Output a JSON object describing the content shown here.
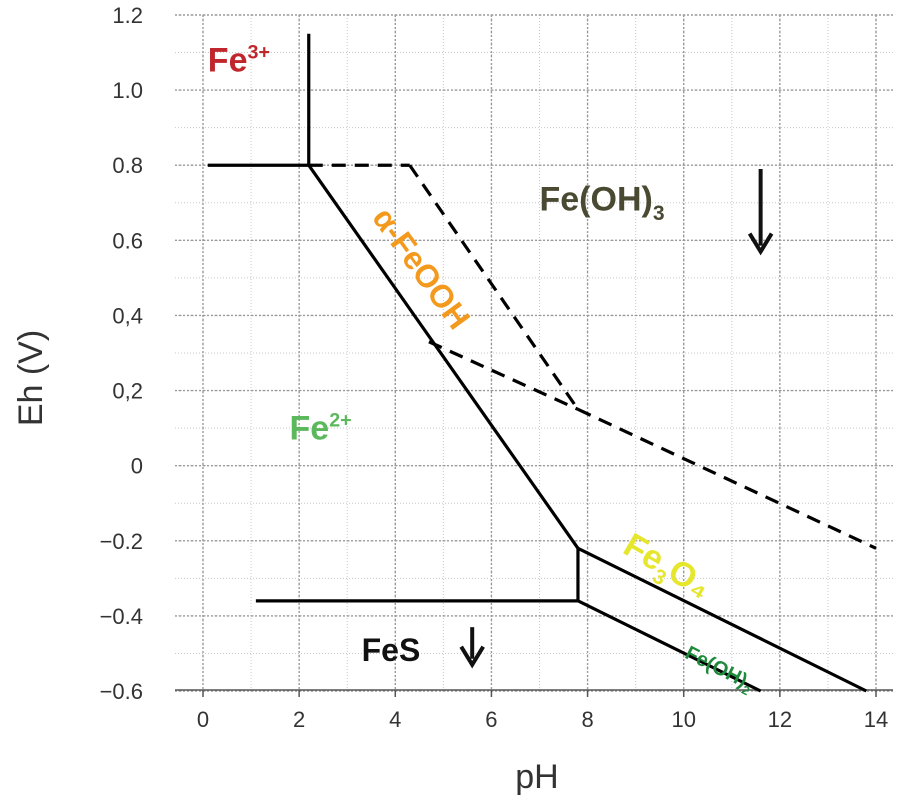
{
  "chart_data": {
    "type": "line",
    "xlabel": "pH",
    "ylabel": "Eh (V)",
    "xlim": [
      0,
      14
    ],
    "ylim": [
      -0.6,
      1.2
    ],
    "x_ticks": [
      0,
      2,
      4,
      6,
      8,
      10,
      12,
      14
    ],
    "x_tick_labels": [
      "0",
      "2",
      "4",
      "6",
      "8",
      "10",
      "12",
      "14"
    ],
    "y_ticks": [
      -0.6,
      -0.4,
      -0.2,
      0,
      0.2,
      0.4,
      0.6,
      0.8,
      1.0,
      1.2
    ],
    "y_tick_labels": [
      "−0.6",
      "−0.4",
      "−0.2",
      "0",
      "0,2",
      "0,4",
      "0.6",
      "0.8",
      "1.0",
      "1.2"
    ],
    "grid": true,
    "x_minor_grid_step": 1,
    "y_minor_grid_step": 0.1,
    "series": [
      {
        "style": "solid",
        "segments": [
          [
            [
              2.2,
              1.15
            ],
            [
              2.2,
              0.8
            ]
          ],
          [
            [
              0.1,
              0.8
            ],
            [
              2.2,
              0.8
            ]
          ],
          [
            [
              2.2,
              0.8
            ],
            [
              7.8,
              -0.22
            ]
          ],
          [
            [
              7.8,
              -0.22
            ],
            [
              13.8,
              -0.6
            ]
          ],
          [
            [
              7.8,
              -0.22
            ],
            [
              7.8,
              -0.36
            ]
          ],
          [
            [
              1.1,
              -0.36
            ],
            [
              7.8,
              -0.36
            ]
          ],
          [
            [
              7.8,
              -0.36
            ],
            [
              11.6,
              -0.6
            ]
          ]
        ]
      },
      {
        "style": "dashed",
        "segments": [
          [
            [
              2.2,
              0.8
            ],
            [
              4.3,
              0.8
            ]
          ],
          [
            [
              4.3,
              0.8
            ],
            [
              7.8,
              0.15
            ]
          ],
          [
            [
              4.7,
              0.33
            ],
            [
              7.8,
              0.15
            ]
          ],
          [
            [
              7.8,
              0.15
            ],
            [
              14.0,
              -0.22
            ]
          ]
        ]
      }
    ],
    "annotations": [
      {
        "text": "Fe",
        "sup": "3+",
        "sub": "",
        "suffix": "",
        "color": "#c0272d",
        "x": 0.1,
        "y": 1.05,
        "rotation": 0
      },
      {
        "text": "Fe(OH)",
        "sup": "",
        "sub": "3",
        "suffix": "",
        "color": "#4a4a33",
        "x": 7.0,
        "y": 0.68,
        "rotation": 0
      },
      {
        "text": "α-FeOOH",
        "sup": "",
        "sub": "",
        "suffix": "",
        "color": "#f39a1e",
        "x": 3.5,
        "y": 0.66,
        "rotation": 54
      },
      {
        "text": "Fe",
        "sup": "2+",
        "sub": "",
        "suffix": "",
        "color": "#5cb85c",
        "x": 1.8,
        "y": 0.07,
        "rotation": 0
      },
      {
        "text": "Fe",
        "sup": "",
        "sub": "3",
        "suffix": "O₄",
        "color": "#e6e62c",
        "x": 8.7,
        "y": -0.23,
        "rotation": 30
      },
      {
        "text": "FeS",
        "sup": "",
        "sub": "",
        "suffix": "",
        "color": "#111111",
        "x": 3.3,
        "y": -0.52,
        "rotation": 0
      },
      {
        "text": "Fe(OH)",
        "sup": "",
        "sub": "2",
        "suffix": "",
        "color": "#1e8a3c",
        "x": 10.0,
        "y": -0.51,
        "rotation": 27
      }
    ],
    "arrows": [
      {
        "x": 11.6,
        "y_from": 0.79,
        "y_to": 0.57,
        "color": "#111111"
      },
      {
        "x": 5.6,
        "y_from": -0.43,
        "y_to": -0.53,
        "color": "#111111"
      }
    ]
  },
  "icons": {
    "down_arrow": "down-arrow-icon"
  }
}
